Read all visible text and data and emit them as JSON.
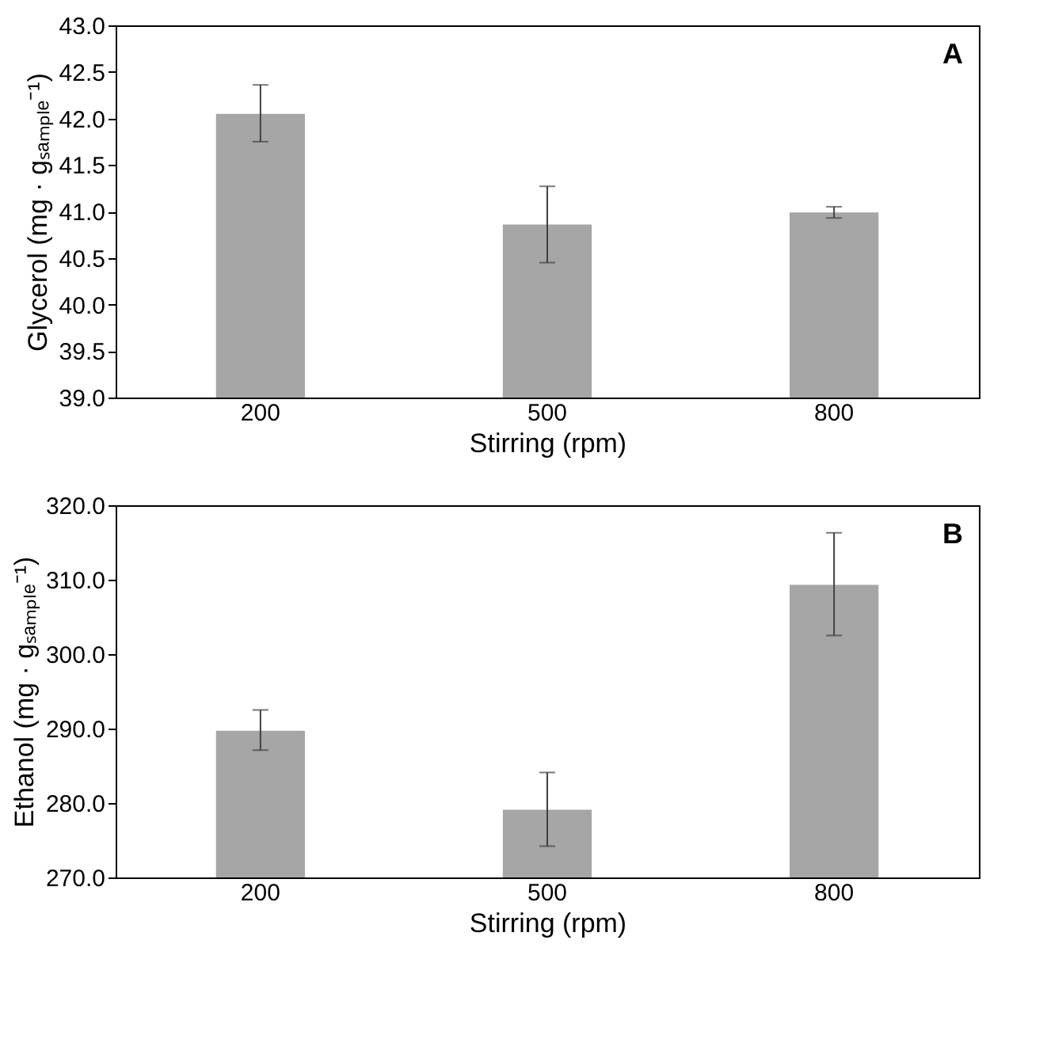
{
  "chart_data": [
    {
      "type": "bar",
      "categories": [
        "200",
        "500",
        "800"
      ],
      "values": [
        42.05,
        40.86,
        40.99
      ],
      "color": "#a6a6a6",
      "errors": [
        [
          41.75,
          42.36
        ],
        [
          40.45,
          41.27
        ],
        [
          40.93,
          41.05
        ]
      ],
      "ylim": [
        39.0,
        43.0
      ],
      "yticks": [
        {
          "value": 39,
          "label": "39.0"
        },
        {
          "value": 39.5,
          "label": "39.5"
        },
        {
          "value": 40,
          "label": "40.0"
        },
        {
          "value": 40.5,
          "label": "40.5"
        },
        {
          "value": 41,
          "label": "41.0"
        },
        {
          "value": 41.5,
          "label": "41.5"
        },
        {
          "value": 42,
          "label": "42.0"
        },
        {
          "value": 42.5,
          "label": "42.5"
        },
        {
          "value": 43,
          "label": "43.0"
        }
      ],
      "xlabel": "Stirring (rpm)",
      "ylabel": "Glycerol (mg · gₛₐₘₚₗₑ⁻¹)",
      "annotations": [
        "A"
      ],
      "grid": false
    },
    {
      "type": "bar",
      "categories": [
        "200",
        "500",
        "800"
      ],
      "values": [
        289.7,
        279.1,
        309.3
      ],
      "color": "#a6a6a6",
      "errors": [
        [
          287.1,
          292.5
        ],
        [
          274.2,
          284.1
        ],
        [
          302.5,
          316.3
        ]
      ],
      "ylim": [
        270.0,
        320.0
      ],
      "yticks": [
        {
          "value": 270,
          "label": "270.0"
        },
        {
          "value": 280,
          "label": "280.0"
        },
        {
          "value": 290,
          "label": "290.0"
        },
        {
          "value": 300,
          "label": "300.0"
        },
        {
          "value": 310,
          "label": "310.0"
        },
        {
          "value": 320,
          "label": "320.0"
        }
      ],
      "xlabel": "Stirring (rpm)",
      "ylabel": "Ethanol (mg · gₛₐₘₚₗₑ⁻¹)",
      "annotations": [
        "B"
      ],
      "grid": false
    }
  ]
}
